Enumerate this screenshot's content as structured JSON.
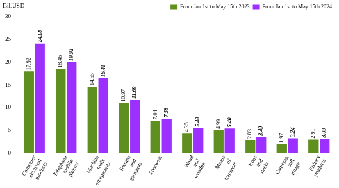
{
  "chart_data": {
    "type": "bar",
    "y_label": "Bil.USD",
    "categories": [
      "Computer electrical products",
      "Telephone mobile phones",
      "Machine tools equipments",
      "Textiles and garments",
      "Footwear",
      "Wood and wooden",
      "Means of transport",
      "Irons and steels",
      "Cameras, still image",
      "Fishery products"
    ],
    "series": [
      {
        "name": "From Jan.1st to May 15th 2023",
        "color": "#5f8f1f",
        "values": [
          17.92,
          18.46,
          14.55,
          10.97,
          7.04,
          4.35,
          4.99,
          2.83,
          1.97,
          2.91
        ],
        "value_labels": [
          "17.92",
          "18.46",
          "14.55",
          "10.97",
          "7.04",
          "4.35",
          "4.99",
          "2.83",
          "1.97",
          "2.91"
        ]
      },
      {
        "name": "From Jan.1st to May 15th 2024",
        "color": "#9b30ff",
        "values": [
          24.08,
          19.92,
          16.41,
          11.69,
          7.58,
          5.48,
          5.4,
          3.49,
          3.24,
          3.09
        ],
        "value_labels": [
          "24.08",
          "19.92",
          "16.41",
          "11.69",
          "7.58",
          "5.48",
          "5.40",
          "3.49",
          "3.24",
          "3.09"
        ]
      }
    ],
    "ylim": [
      0,
      30
    ],
    "yticks": [
      0,
      5,
      10,
      15,
      20,
      25,
      30
    ],
    "grid": false,
    "legend": "top-right",
    "data_labels": true
  }
}
